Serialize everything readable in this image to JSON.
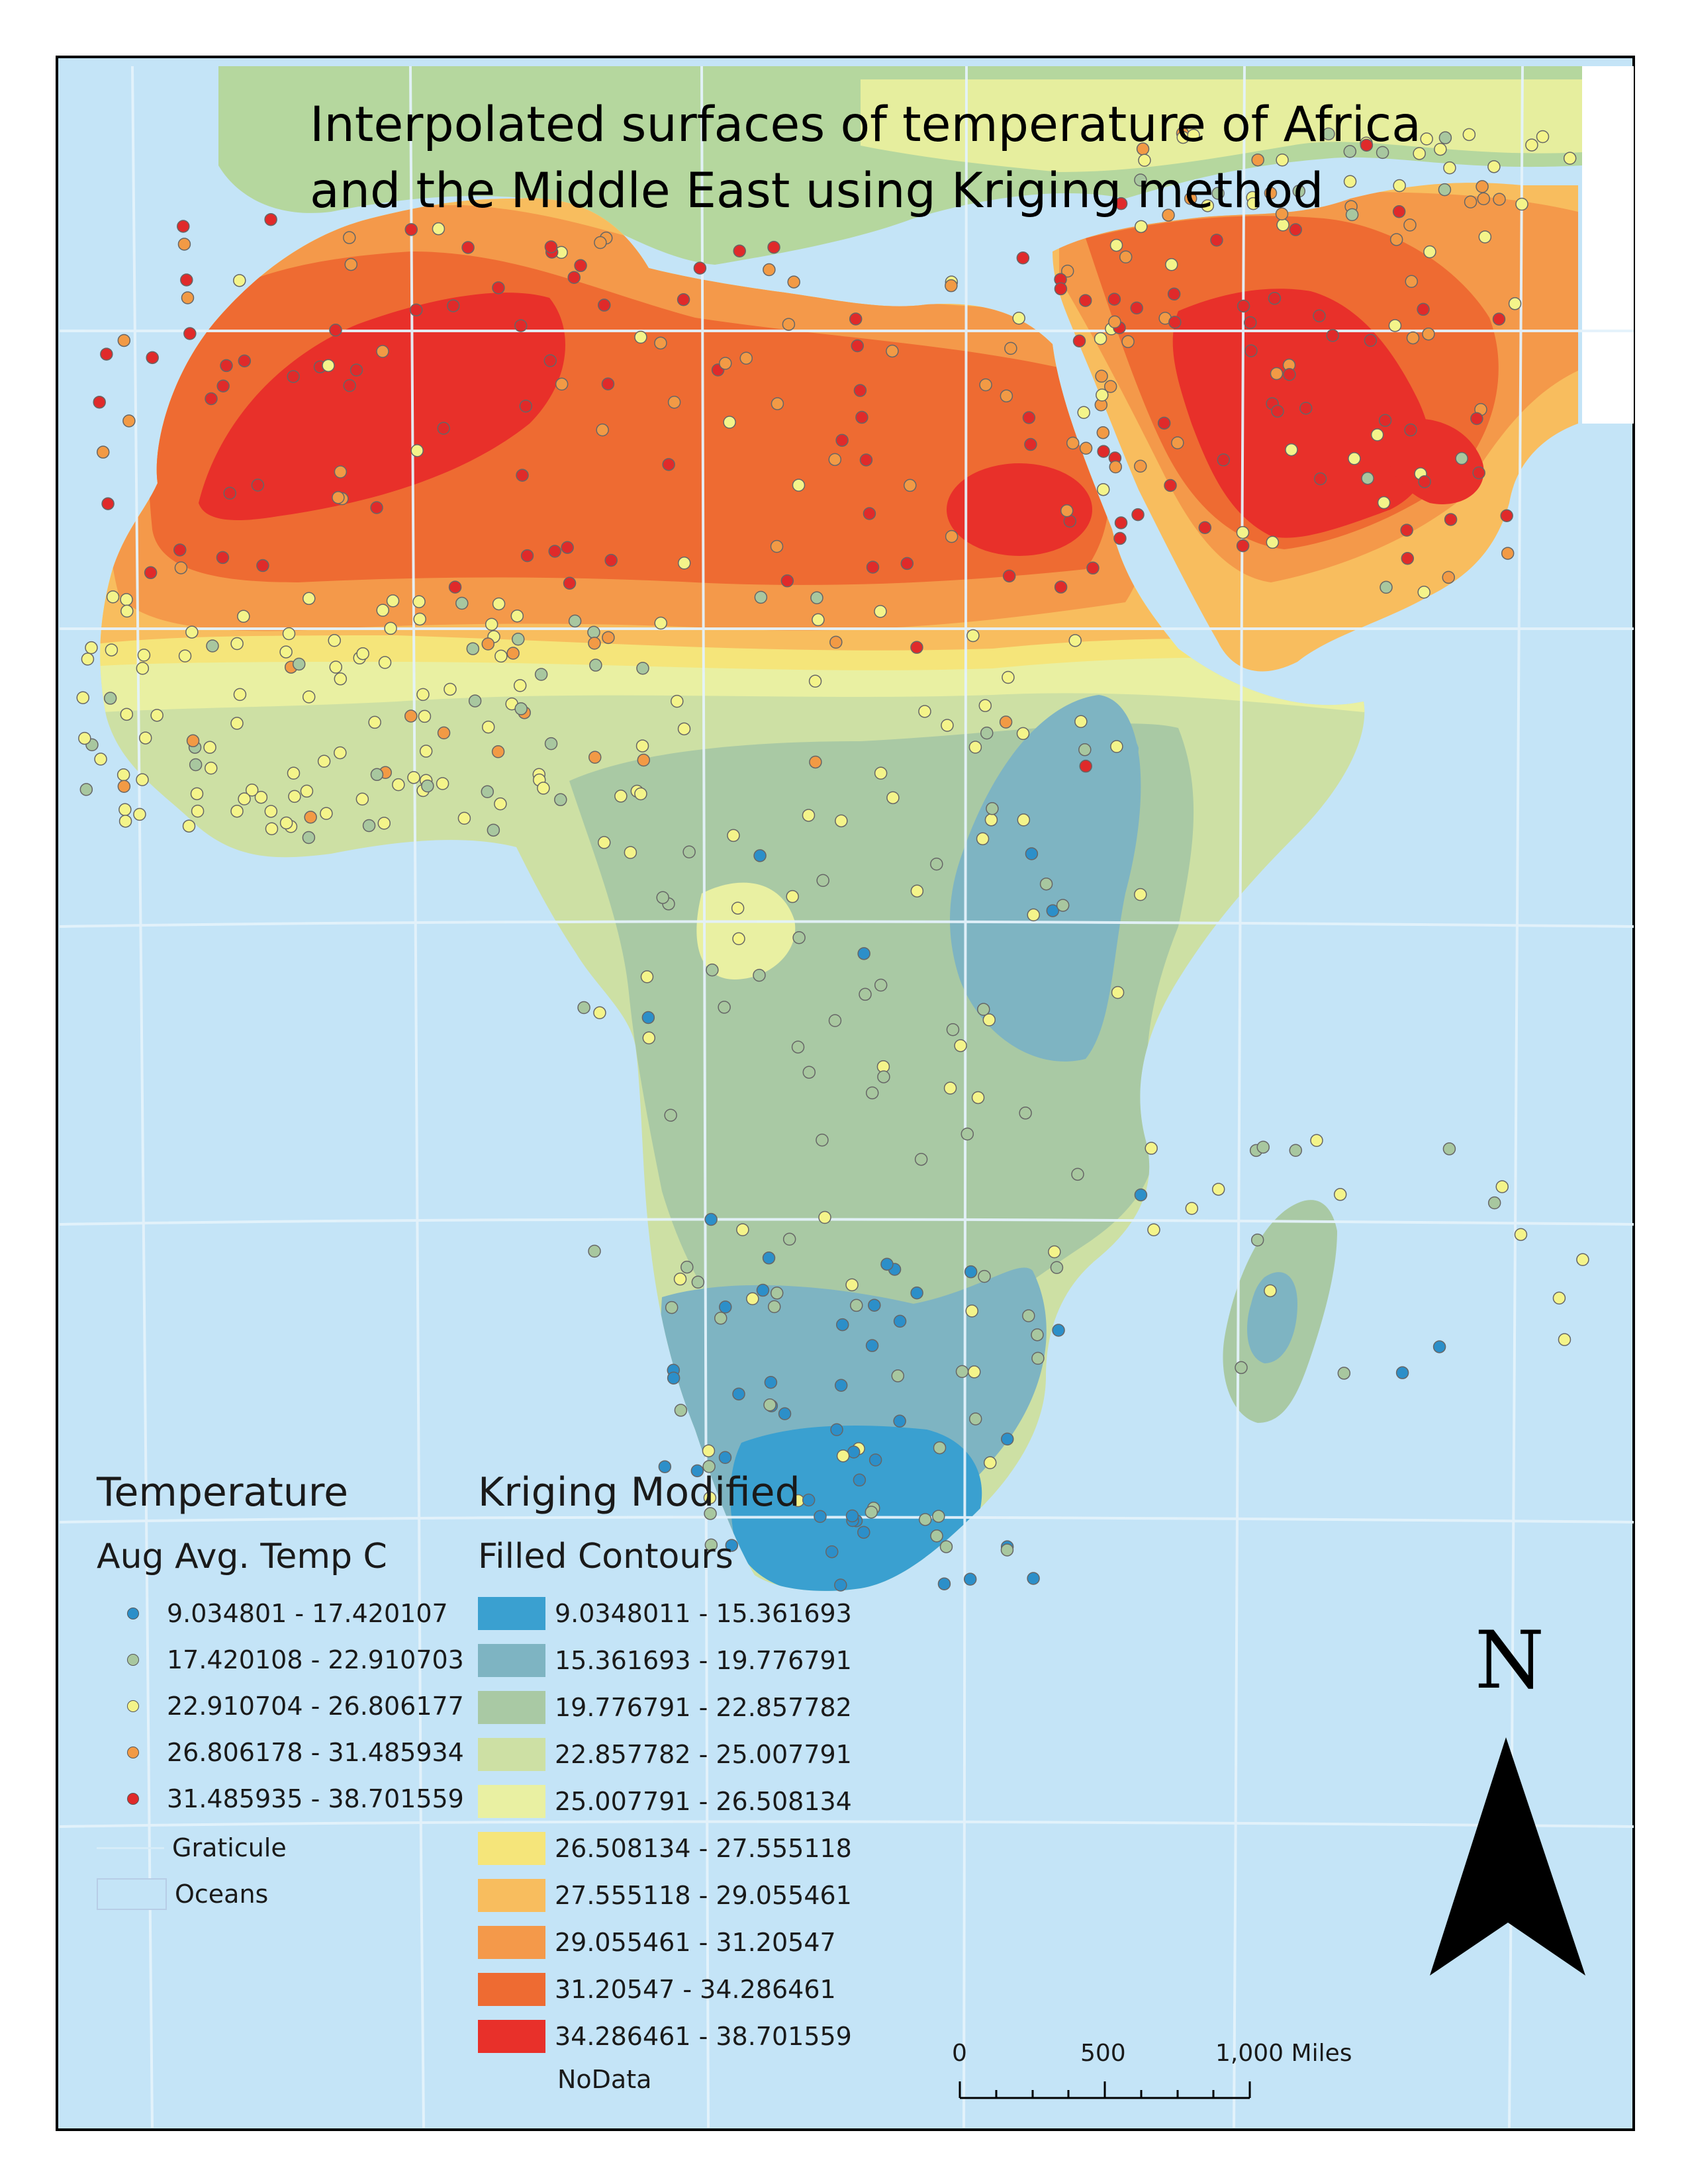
{
  "title": {
    "line1": "Interpolated surfaces of temperature of Africa",
    "line2": "and the Middle East using Kriging method"
  },
  "legend_points": {
    "heading": "Temperature",
    "subheading": "Aug  Avg. Temp C",
    "classes": [
      {
        "label": "9.034801 - 17.420107",
        "color": "#2c8fc9"
      },
      {
        "label": "17.420108 - 22.910703",
        "color": "#a8c79f"
      },
      {
        "label": "22.910704 - 26.806177",
        "color": "#f4f48a"
      },
      {
        "label": "26.806178 - 31.485934",
        "color": "#f29a45"
      },
      {
        "label": "31.485935 - 38.701559",
        "color": "#e02a2a"
      }
    ],
    "graticule_label": "Graticule",
    "oceans_label": "Oceans"
  },
  "legend_contours": {
    "heading": "Kriging Modified",
    "subheading": "Filled Contours",
    "classes": [
      {
        "label": "9.0348011 - 15.361693",
        "color": "#3aa0d0"
      },
      {
        "label": "15.361693 - 19.776791",
        "color": "#7eb4c2"
      },
      {
        "label": "19.776791 - 22.857782",
        "color": "#a9c9a4"
      },
      {
        "label": "22.857782 - 25.007791",
        "color": "#cde0a4"
      },
      {
        "label": "25.007791 - 26.508134",
        "color": "#e9f0a2"
      },
      {
        "label": "26.508134 - 27.555118",
        "color": "#f5e57a"
      },
      {
        "label": "27.555118 - 29.055461",
        "color": "#f8bd5e"
      },
      {
        "label": "29.055461 - 31.20547",
        "color": "#f4994a"
      },
      {
        "label": "31.20547 - 34.286461",
        "color": "#ee6b32"
      },
      {
        "label": "34.286461 - 38.701559",
        "color": "#e8302a"
      }
    ],
    "nodata_label": "NoData"
  },
  "scalebar": {
    "labels": [
      "0",
      "500",
      "1,000 Miles"
    ]
  },
  "north_arrow": {
    "letter": "N",
    "icon": "north-arrow-icon"
  },
  "colors": {
    "ocean": "#c4e4f7",
    "graticule": "#e4f2fb",
    "land_outside": "#b5d79e"
  }
}
